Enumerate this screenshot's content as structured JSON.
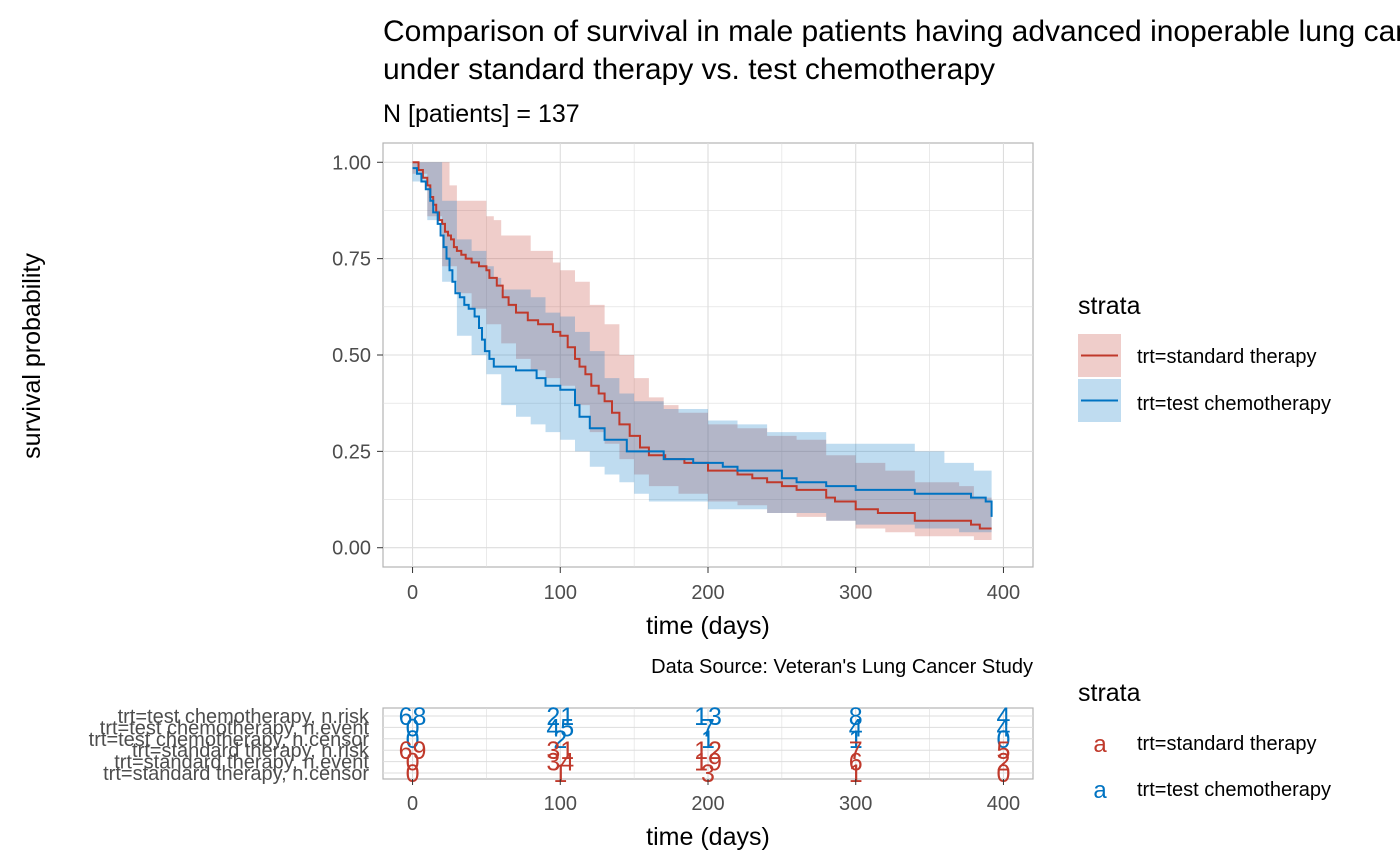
{
  "title_line1": "Comparison of survival in male patients having advanced inoperable lung cancer",
  "title_line2": "under standard therapy vs. test chemotherapy",
  "subtitle": "N [patients] = 137",
  "caption": "Data Source: Veteran's Lung Cancer Study",
  "colors": {
    "standard": "#C0392B",
    "test": "#0073C2",
    "grid": "#DDDDDD",
    "panel_border": "#B3B3B3",
    "axis_text": "#4D4D4D"
  },
  "chart_data": [
    {
      "type": "line",
      "subtype": "kaplan-meier survival curve with confidence bands",
      "xlabel": "time (days)",
      "ylabel": "survival probability",
      "xlim": [
        -20,
        420
      ],
      "ylim": [
        -0.05,
        1.05
      ],
      "x_ticks": [
        0,
        100,
        200,
        300,
        400
      ],
      "x_tick_labels": [
        "0",
        "100",
        "200",
        "300",
        "400"
      ],
      "y_ticks": [
        0,
        0.25,
        0.5,
        0.75,
        1.0
      ],
      "y_tick_labels": [
        "0.00",
        "0.25",
        "0.50",
        "0.75",
        "1.00"
      ],
      "grid": true,
      "legend": {
        "title": "strata",
        "placement": "right",
        "entries": [
          "trt=standard therapy",
          "trt=test chemotherapy"
        ]
      },
      "series": [
        {
          "name": "trt=standard therapy",
          "color_key": "standard",
          "points": [
            [
              0,
              1.0
            ],
            [
              4,
              0.98
            ],
            [
              7,
              0.96
            ],
            [
              10,
              0.94
            ],
            [
              12,
              0.91
            ],
            [
              14,
              0.89
            ],
            [
              16,
              0.87
            ],
            [
              18,
              0.85
            ],
            [
              20,
              0.84
            ],
            [
              22,
              0.82
            ],
            [
              24,
              0.81
            ],
            [
              26,
              0.8
            ],
            [
              28,
              0.78
            ],
            [
              30,
              0.77
            ],
            [
              33,
              0.76
            ],
            [
              36,
              0.75
            ],
            [
              40,
              0.74
            ],
            [
              45,
              0.73
            ],
            [
              50,
              0.72
            ],
            [
              52,
              0.7
            ],
            [
              57,
              0.68
            ],
            [
              61,
              0.65
            ],
            [
              65,
              0.63
            ],
            [
              70,
              0.61
            ],
            [
              78,
              0.59
            ],
            [
              85,
              0.58
            ],
            [
              95,
              0.56
            ],
            [
              100,
              0.55
            ],
            [
              105,
              0.52
            ],
            [
              110,
              0.49
            ],
            [
              113,
              0.47
            ],
            [
              117,
              0.45
            ],
            [
              121,
              0.42
            ],
            [
              126,
              0.4
            ],
            [
              130,
              0.38
            ],
            [
              135,
              0.35
            ],
            [
              140,
              0.32
            ],
            [
              147,
              0.29
            ],
            [
              154,
              0.26
            ],
            [
              160,
              0.24
            ],
            [
              171,
              0.23
            ],
            [
              184,
              0.22
            ],
            [
              200,
              0.2
            ],
            [
              220,
              0.19
            ],
            [
              230,
              0.18
            ],
            [
              240,
              0.17
            ],
            [
              250,
              0.16
            ],
            [
              260,
              0.15
            ],
            [
              280,
              0.13
            ],
            [
              286,
              0.12
            ],
            [
              300,
              0.1
            ],
            [
              315,
              0.09
            ],
            [
              340,
              0.07
            ],
            [
              378,
              0.06
            ],
            [
              384,
              0.05
            ],
            [
              392,
              0.05
            ]
          ],
          "lower": [
            [
              0,
              0.97
            ],
            [
              10,
              0.86
            ],
            [
              20,
              0.73
            ],
            [
              30,
              0.66
            ],
            [
              40,
              0.62
            ],
            [
              50,
              0.58
            ],
            [
              60,
              0.53
            ],
            [
              70,
              0.49
            ],
            [
              80,
              0.46
            ],
            [
              90,
              0.44
            ],
            [
              100,
              0.42
            ],
            [
              110,
              0.37
            ],
            [
              120,
              0.3
            ],
            [
              130,
              0.27
            ],
            [
              140,
              0.23
            ],
            [
              150,
              0.19
            ],
            [
              160,
              0.16
            ],
            [
              180,
              0.14
            ],
            [
              200,
              0.12
            ],
            [
              220,
              0.11
            ],
            [
              240,
              0.09
            ],
            [
              260,
              0.08
            ],
            [
              280,
              0.07
            ],
            [
              300,
              0.05
            ],
            [
              320,
              0.04
            ],
            [
              340,
              0.03
            ],
            [
              380,
              0.02
            ],
            [
              392,
              0.02
            ]
          ],
          "upper": [
            [
              0,
              1.0
            ],
            [
              20,
              1.0
            ],
            [
              25,
              0.94
            ],
            [
              30,
              0.9
            ],
            [
              40,
              0.9
            ],
            [
              50,
              0.86
            ],
            [
              55,
              0.85
            ],
            [
              60,
              0.81
            ],
            [
              80,
              0.77
            ],
            [
              95,
              0.74
            ],
            [
              100,
              0.72
            ],
            [
              110,
              0.69
            ],
            [
              120,
              0.63
            ],
            [
              130,
              0.58
            ],
            [
              140,
              0.5
            ],
            [
              150,
              0.44
            ],
            [
              160,
              0.39
            ],
            [
              170,
              0.37
            ],
            [
              180,
              0.35
            ],
            [
              200,
              0.32
            ],
            [
              220,
              0.31
            ],
            [
              240,
              0.29
            ],
            [
              260,
              0.28
            ],
            [
              280,
              0.24
            ],
            [
              300,
              0.22
            ],
            [
              320,
              0.2
            ],
            [
              340,
              0.17
            ],
            [
              370,
              0.16
            ],
            [
              380,
              0.13
            ],
            [
              392,
              0.13
            ]
          ]
        },
        {
          "name": "trt=test chemotherapy",
          "color_key": "test",
          "points": [
            [
              0,
              0.985
            ],
            [
              3,
              0.97
            ],
            [
              6,
              0.95
            ],
            [
              9,
              0.93
            ],
            [
              12,
              0.9
            ],
            [
              14,
              0.87
            ],
            [
              17,
              0.84
            ],
            [
              19,
              0.81
            ],
            [
              21,
              0.78
            ],
            [
              23,
              0.75
            ],
            [
              25,
              0.72
            ],
            [
              27,
              0.69
            ],
            [
              29,
              0.66
            ],
            [
              32,
              0.65
            ],
            [
              35,
              0.63
            ],
            [
              38,
              0.62
            ],
            [
              42,
              0.6
            ],
            [
              45,
              0.57
            ],
            [
              47,
              0.54
            ],
            [
              49,
              0.51
            ],
            [
              52,
              0.49
            ],
            [
              55,
              0.47
            ],
            [
              70,
              0.46
            ],
            [
              84,
              0.44
            ],
            [
              90,
              0.42
            ],
            [
              100,
              0.41
            ],
            [
              110,
              0.37
            ],
            [
              113,
              0.34
            ],
            [
              120,
              0.31
            ],
            [
              130,
              0.28
            ],
            [
              145,
              0.25
            ],
            [
              170,
              0.23
            ],
            [
              190,
              0.22
            ],
            [
              210,
              0.21
            ],
            [
              220,
              0.2
            ],
            [
              250,
              0.18
            ],
            [
              260,
              0.17
            ],
            [
              280,
              0.16
            ],
            [
              300,
              0.15
            ],
            [
              340,
              0.14
            ],
            [
              378,
              0.13
            ],
            [
              388,
              0.12
            ],
            [
              392,
              0.08
            ]
          ],
          "lower": [
            [
              0,
              0.95
            ],
            [
              10,
              0.85
            ],
            [
              20,
              0.69
            ],
            [
              30,
              0.55
            ],
            [
              40,
              0.5
            ],
            [
              50,
              0.45
            ],
            [
              60,
              0.37
            ],
            [
              70,
              0.34
            ],
            [
              80,
              0.32
            ],
            [
              90,
              0.3
            ],
            [
              100,
              0.28
            ],
            [
              110,
              0.25
            ],
            [
              120,
              0.21
            ],
            [
              130,
              0.19
            ],
            [
              140,
              0.17
            ],
            [
              150,
              0.14
            ],
            [
              160,
              0.12
            ],
            [
              200,
              0.1
            ],
            [
              240,
              0.09
            ],
            [
              280,
              0.07
            ],
            [
              300,
              0.06
            ],
            [
              340,
              0.05
            ],
            [
              370,
              0.04
            ],
            [
              392,
              0.03
            ]
          ],
          "upper": [
            [
              0,
              1.0
            ],
            [
              15,
              1.0
            ],
            [
              20,
              0.9
            ],
            [
              30,
              0.8
            ],
            [
              40,
              0.77
            ],
            [
              50,
              0.73
            ],
            [
              55,
              0.7
            ],
            [
              60,
              0.67
            ],
            [
              80,
              0.65
            ],
            [
              90,
              0.61
            ],
            [
              100,
              0.6
            ],
            [
              110,
              0.56
            ],
            [
              120,
              0.51
            ],
            [
              130,
              0.44
            ],
            [
              140,
              0.4
            ],
            [
              150,
              0.38
            ],
            [
              170,
              0.36
            ],
            [
              200,
              0.33
            ],
            [
              220,
              0.32
            ],
            [
              240,
              0.3
            ],
            [
              280,
              0.27
            ],
            [
              300,
              0.27
            ],
            [
              340,
              0.25
            ],
            [
              360,
              0.22
            ],
            [
              380,
              0.2
            ],
            [
              392,
              0.2
            ]
          ]
        }
      ]
    },
    {
      "type": "table",
      "subtype": "risk table",
      "xlabel": "time (days)",
      "x_ticks": [
        0,
        100,
        200,
        300,
        400
      ],
      "x_tick_labels": [
        "0",
        "100",
        "200",
        "300",
        "400"
      ],
      "legend": {
        "title": "strata",
        "placement": "right",
        "entries": [
          "trt=standard therapy",
          "trt=test chemotherapy"
        ],
        "key_glyph": "a"
      },
      "rows": [
        {
          "label": "trt=test chemotherapy, n.risk",
          "color_key": "test",
          "values": [
            68,
            21,
            13,
            8,
            4
          ]
        },
        {
          "label": "trt=test chemotherapy, n.event",
          "color_key": "test",
          "values": [
            0,
            45,
            7,
            4,
            4
          ]
        },
        {
          "label": "trt=test chemotherapy, n.censor",
          "color_key": "test",
          "values": [
            0,
            2,
            1,
            1,
            0
          ]
        },
        {
          "label": "trt=standard therapy, n.risk",
          "color_key": "standard",
          "values": [
            69,
            31,
            12,
            7,
            5
          ]
        },
        {
          "label": "trt=standard therapy, n.event",
          "color_key": "standard",
          "values": [
            0,
            34,
            19,
            6,
            2
          ]
        },
        {
          "label": "trt=standard therapy, n.censor",
          "color_key": "standard",
          "values": [
            0,
            1,
            3,
            1,
            0
          ]
        }
      ]
    }
  ]
}
